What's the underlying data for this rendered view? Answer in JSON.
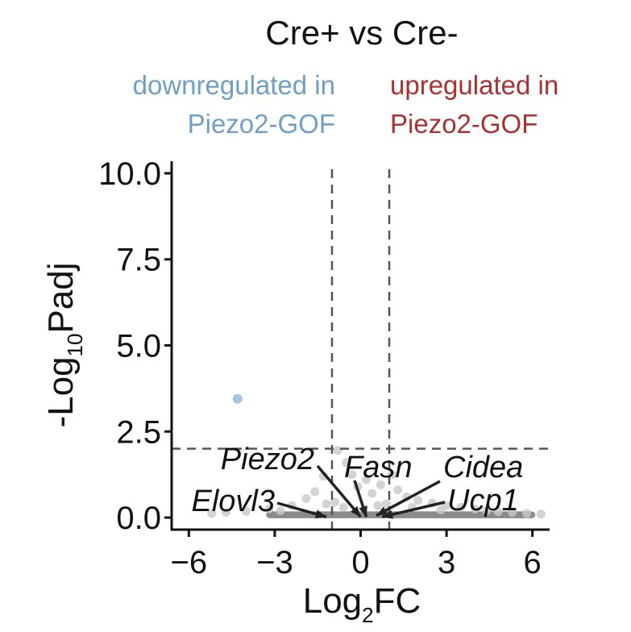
{
  "chart_data": {
    "type": "scatter",
    "title": "Cre+ vs Cre-",
    "xlabel": {
      "base": "Log",
      "sub": "2",
      "rest": "FC"
    },
    "ylabel": {
      "base": "-Log",
      "sub": "10",
      "rest": "Padj"
    },
    "xlim": [
      -6.6,
      6.6
    ],
    "ylim": [
      -0.35,
      10.35
    ],
    "xticks": [
      -6,
      -3,
      0,
      3,
      6
    ],
    "xtick_labels": [
      "−6",
      "−3",
      "0",
      "3",
      "6"
    ],
    "yticks": [
      0,
      2.5,
      5,
      7.5,
      10
    ],
    "ytick_labels": [
      "0.0",
      "2.5",
      "5.0",
      "7.5",
      "10.0"
    ],
    "thresholds": {
      "log2fc": [
        -1,
        1
      ],
      "neg_log10_padj": 2
    },
    "annotations": {
      "down": {
        "lines": [
          "downregulated in",
          "Piezo2-GOF"
        ],
        "color": "#6f9fc4"
      },
      "up": {
        "lines": [
          "upregulated in",
          "Piezo2-GOF"
        ],
        "color": "#a83232"
      }
    },
    "colors": {
      "significant_down": "#a9c4e0",
      "nonsignificant": "#c8c8c8",
      "dense_band": "#8a8a8a",
      "threshold_line": "#555555",
      "axis": "#111111"
    },
    "significant_points": [
      {
        "x": -4.3,
        "y": 3.45,
        "group": "down"
      }
    ],
    "nonsignificant_points": [
      [
        -0.8,
        1.95
      ],
      [
        -1.3,
        1.2
      ],
      [
        -1.6,
        0.75
      ],
      [
        -1.9,
        0.55
      ],
      [
        -2.4,
        0.35
      ],
      [
        -3.2,
        0.25
      ],
      [
        -4.0,
        0.18
      ],
      [
        -4.7,
        0.15
      ],
      [
        -5.2,
        0.12
      ],
      [
        -0.5,
        1.6
      ],
      [
        -0.3,
        1.25
      ],
      [
        -0.1,
        0.9
      ],
      [
        0.2,
        1.1
      ],
      [
        0.4,
        0.7
      ],
      [
        0.7,
        0.95
      ],
      [
        1.1,
        1.25
      ],
      [
        1.3,
        0.8
      ],
      [
        1.6,
        0.6
      ],
      [
        2.0,
        0.5
      ],
      [
        2.5,
        0.42
      ],
      [
        3.0,
        0.35
      ],
      [
        3.5,
        0.3
      ],
      [
        4.0,
        0.25
      ],
      [
        4.4,
        0.2
      ],
      [
        4.8,
        0.17
      ],
      [
        5.3,
        0.15
      ],
      [
        5.8,
        0.12
      ],
      [
        6.3,
        0.1
      ],
      [
        -0.9,
        0.45
      ],
      [
        0.9,
        0.4
      ],
      [
        -0.6,
        0.3
      ],
      [
        0.6,
        0.35
      ],
      [
        -2.8,
        0.2
      ],
      [
        2.8,
        0.22
      ],
      [
        -1.2,
        0.4
      ],
      [
        1.8,
        0.3
      ]
    ],
    "dense_band": {
      "x": [
        -3.3,
        6.1
      ],
      "y": [
        -0.02,
        0.18
      ]
    },
    "gene_labels": [
      {
        "name": "Piezo2",
        "x": 0.0,
        "y": 0.02
      },
      {
        "name": "Fasn",
        "x": 0.2,
        "y": 0.02
      },
      {
        "name": "Cidea",
        "x": 0.55,
        "y": 0.06
      },
      {
        "name": "Elovl3",
        "x": -1.2,
        "y": 0.02
      },
      {
        "name": "Ucp1",
        "x": 0.75,
        "y": 0.02
      }
    ]
  }
}
